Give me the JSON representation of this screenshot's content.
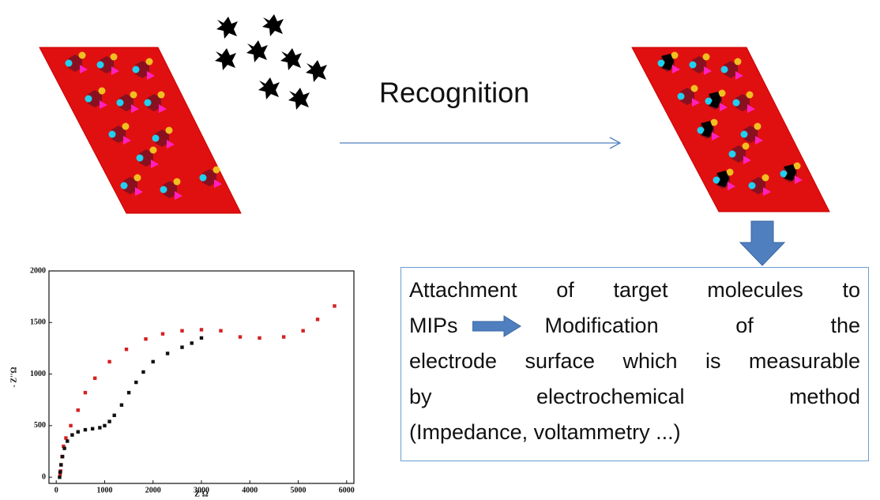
{
  "step_label": "Recognition",
  "box": {
    "lines": [
      [
        "Attachment of target molecules to"
      ],
      [
        "MIPs",
        "Modification of the"
      ],
      [
        "electrode surface which is measurable"
      ],
      [
        "by electrochemical method"
      ],
      [
        "(Impedance, voltammetry ...)"
      ]
    ]
  },
  "chart_data": {
    "type": "scatter",
    "xlabel": "Z'Ω",
    "ylabel": "- Z''Ω",
    "xlim": [
      -150,
      6150
    ],
    "ylim": [
      -60,
      2000
    ],
    "xticks": [
      0,
      1000,
      2000,
      3000,
      4000,
      5000,
      6000
    ],
    "yticks": [
      0,
      500,
      1000,
      1500,
      2000
    ],
    "series": [
      {
        "color": "#d42020",
        "x": [
          80,
          90,
          100,
          120,
          150,
          200,
          300,
          450,
          600,
          800,
          1100,
          1450,
          1850,
          2200,
          2600,
          3000,
          3400,
          3800,
          4200,
          4700,
          5100,
          5400,
          5750
        ],
        "values": [
          30,
          60,
          120,
          200,
          300,
          380,
          500,
          650,
          820,
          960,
          1120,
          1240,
          1340,
          1390,
          1420,
          1430,
          1420,
          1360,
          1350,
          1360,
          1420,
          1530,
          1660
        ]
      },
      {
        "color": "#111111",
        "x": [
          70,
          80,
          100,
          130,
          170,
          230,
          330,
          450,
          600,
          750,
          900,
          1000,
          1100,
          1200,
          1350,
          1500,
          1650,
          1800,
          2000,
          2300,
          2600,
          2800,
          3000
        ],
        "values": [
          0,
          50,
          120,
          200,
          280,
          350,
          410,
          440,
          460,
          470,
          480,
          500,
          540,
          600,
          700,
          820,
          920,
          1020,
          1120,
          1200,
          1260,
          1300,
          1350
        ]
      }
    ]
  }
}
